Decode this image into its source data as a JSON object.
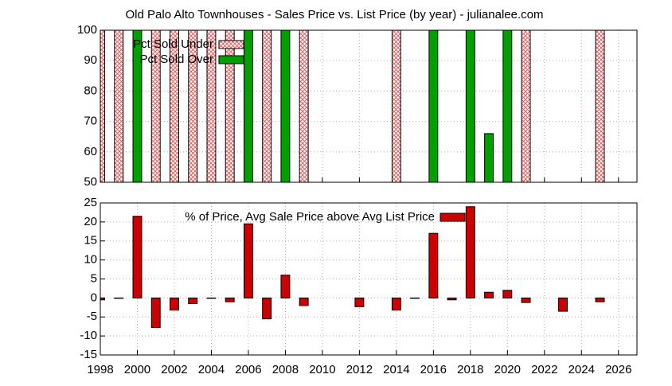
{
  "chart_data": [
    {
      "type": "bar",
      "title": "Old Palo Alto Townhouses - Sales Price vs. List Price (by year) - julianalee.com",
      "x": [
        1998,
        1999,
        2000,
        2001,
        2002,
        2003,
        2004,
        2005,
        2006,
        2007,
        2008,
        2009,
        2010,
        2011,
        2012,
        2013,
        2014,
        2015,
        2016,
        2017,
        2018,
        2019,
        2020,
        2021,
        2022,
        2023,
        2024,
        2025
      ],
      "series": [
        {
          "name": "Pct Sold Under",
          "color": "#e06060",
          "pattern": "crosshatch",
          "values": [
            100,
            100,
            null,
            100,
            100,
            100,
            100,
            100,
            null,
            100,
            null,
            100,
            null,
            null,
            null,
            null,
            100,
            null,
            null,
            null,
            null,
            null,
            null,
            100,
            null,
            null,
            null,
            100
          ]
        },
        {
          "name": "Pct Sold Over",
          "color": "#00a000",
          "values": [
            null,
            null,
            100,
            null,
            null,
            null,
            null,
            null,
            100,
            null,
            100,
            null,
            null,
            null,
            null,
            null,
            null,
            null,
            100,
            null,
            100,
            66,
            100,
            null,
            null,
            null,
            null,
            null
          ]
        }
      ],
      "xlim": [
        1998,
        2027
      ],
      "ylim": [
        50,
        100
      ],
      "yticks": [
        50,
        60,
        70,
        80,
        90,
        100
      ],
      "grid": true,
      "legend": "top-left"
    },
    {
      "type": "bar",
      "x": [
        1998,
        1999,
        2000,
        2001,
        2002,
        2003,
        2004,
        2005,
        2006,
        2007,
        2008,
        2009,
        2010,
        2011,
        2012,
        2013,
        2014,
        2015,
        2016,
        2017,
        2018,
        2019,
        2020,
        2021,
        2022,
        2023,
        2024,
        2025
      ],
      "series": [
        {
          "name": "% of Price, Avg Sale Price above Avg List Price",
          "color": "#cc0000",
          "values": [
            -0.5,
            0,
            21.5,
            -7.8,
            -3.2,
            -1.5,
            0,
            -1,
            19.5,
            -5.5,
            6,
            -2,
            null,
            null,
            -2.3,
            null,
            -3.2,
            0,
            17,
            -0.5,
            24,
            1.5,
            2,
            -1.2,
            null,
            -3.5,
            null,
            -1
          ]
        }
      ],
      "xlim": [
        1998,
        2027
      ],
      "xticks": [
        1998,
        2000,
        2002,
        2004,
        2006,
        2008,
        2010,
        2012,
        2014,
        2016,
        2018,
        2020,
        2022,
        2024,
        2026
      ],
      "ylim": [
        -15,
        25
      ],
      "yticks": [
        -15,
        -10,
        -5,
        0,
        5,
        10,
        15,
        20,
        25
      ],
      "grid": true,
      "legend": "top-center"
    }
  ]
}
